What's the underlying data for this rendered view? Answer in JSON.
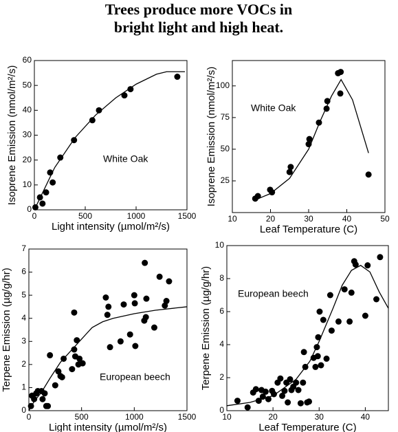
{
  "title": [
    "Trees produce more VOCs in",
    "bright light and high heat."
  ],
  "chart_data": [
    {
      "type": "scatter",
      "xlabel": "Light intensity (µmol/m²/s)",
      "ylabel": "Isoprene Emission (nmol/m²/s)",
      "annotation": "White Oak",
      "xlim": [
        0,
        1500
      ],
      "xticks": [
        0,
        500,
        1000,
        1500
      ],
      "ylim": [
        0,
        60
      ],
      "yticks": [
        0,
        10,
        20,
        30,
        40,
        50,
        60
      ],
      "series": [
        {
          "type": "scatter",
          "color": "#000000",
          "x": [
            10,
            55,
            80,
            115,
            155,
            180,
            255,
            390,
            570,
            635,
            885,
            945,
            1405
          ],
          "values": [
            1,
            5,
            2.5,
            7,
            15,
            11,
            21,
            28,
            36,
            40,
            46,
            48.5,
            53.5
          ]
        },
        {
          "type": "line",
          "color": "#000000",
          "x": [
            0,
            200,
            400,
            600,
            800,
            1000,
            1200,
            1300,
            1480
          ],
          "values": [
            0,
            17,
            29,
            38,
            45,
            50.5,
            54.5,
            55.5,
            55.5
          ]
        }
      ]
    },
    {
      "type": "scatter",
      "xlabel": "Leaf Temperature (C)",
      "ylabel": "Isoprene Emission (nmol/m²/s)",
      "annotation": "White Oak",
      "xlim": [
        10,
        50
      ],
      "xticks": [
        10,
        20,
        30,
        40,
        50
      ],
      "ylim": [
        0,
        120
      ],
      "yticks": [
        25,
        50,
        75,
        100
      ],
      "series": [
        {
          "type": "scatter",
          "color": "#000000",
          "x": [
            16,
            16.7,
            19.9,
            20.4,
            25,
            25.3,
            30,
            30.2,
            32.7,
            34.7,
            34.9,
            37.7,
            38.4,
            38.3,
            45.7
          ],
          "values": [
            11,
            13,
            18,
            16,
            32,
            36,
            54,
            58,
            71,
            82,
            88,
            110,
            111,
            94,
            30
          ]
        },
        {
          "type": "line",
          "color": "#000000",
          "x": [
            16,
            20,
            25,
            30,
            33,
            36,
            38.5,
            41.5,
            45.7
          ],
          "values": [
            10,
            15,
            27,
            50,
            72,
            92,
            105,
            89,
            47
          ]
        }
      ]
    },
    {
      "type": "scatter",
      "xlabel": "Light intensity (µmol/m²/s)",
      "ylabel": "Terpene Emission (µg/g/hr)",
      "annotation": "European beech",
      "xlim": [
        0,
        1500
      ],
      "xticks": [
        0,
        500,
        1000,
        1500
      ],
      "ylim": [
        0,
        7
      ],
      "yticks": [
        0,
        1,
        2,
        3,
        4,
        5,
        6,
        7
      ],
      "series": [
        {
          "type": "scatter",
          "color": "#000000",
          "x": [
            20,
            30,
            50,
            70,
            85,
            120,
            130,
            150,
            165,
            180,
            200,
            250,
            280,
            300,
            315,
            330,
            410,
            430,
            430,
            440,
            455,
            470,
            480,
            510,
            730,
            745,
            755,
            770,
            870,
            900,
            960,
            1000,
            1010,
            1005,
            1095,
            1100,
            1110,
            1115,
            1190,
            1240,
            1290,
            1305,
            1330
          ],
          "values": [
            0.2,
            0.65,
            0.5,
            0.75,
            0.85,
            0.85,
            0.5,
            0.75,
            0.2,
            0.2,
            2.4,
            1.1,
            1.7,
            1.5,
            1.45,
            2.25,
            1.8,
            2.65,
            4.25,
            2.35,
            3.05,
            2.0,
            2.25,
            2.05,
            4.9,
            4.15,
            4.5,
            2.75,
            3.0,
            4.6,
            3.3,
            5.0,
            2.8,
            4.65,
            3.9,
            6.4,
            4.05,
            4.85,
            3.6,
            5.8,
            4.55,
            4.75,
            5.6
          ]
        },
        {
          "type": "line",
          "color": "#000000",
          "x": [
            0,
            50,
            120,
            200,
            300,
            400,
            500,
            600,
            700,
            800,
            1000,
            1200,
            1500
          ],
          "values": [
            0,
            0.4,
            0.8,
            1.4,
            2.1,
            2.6,
            3.1,
            3.6,
            3.85,
            4.0,
            4.2,
            4.35,
            4.5
          ]
        }
      ]
    },
    {
      "type": "scatter",
      "xlabel": "Leaf Temperature (C)",
      "ylabel": "Terpene Emission (µg/g/hr)",
      "annotation": "European beech",
      "xlim": [
        10,
        45
      ],
      "xticks": [
        10,
        20,
        30,
        40
      ],
      "ylim": [
        0,
        10
      ],
      "yticks": [
        0,
        2,
        4,
        6,
        8,
        10
      ],
      "series": [
        {
          "type": "scatter",
          "color": "#000000",
          "x": [
            12.3,
            14.5,
            15.7,
            16.3,
            16.9,
            17.5,
            17.8,
            18.4,
            19,
            19.8,
            20.2,
            21,
            21.6,
            22,
            22.5,
            22.9,
            23.2,
            23.7,
            24,
            24.4,
            25,
            25.5,
            26,
            26.5,
            26.7,
            27,
            27.4,
            27.8,
            28.8,
            29.2,
            29.5,
            29.7,
            29.8,
            30.1,
            30.4,
            30.9,
            31.6,
            32.4,
            32.7,
            34.2,
            35.5,
            36.6,
            37,
            37.6,
            37.9,
            40,
            40.5,
            42.4,
            43.2
          ],
          "values": [
            0.6,
            0.2,
            1.1,
            1.3,
            0.6,
            1.25,
            0.85,
            1.15,
            0.7,
            1.2,
            1.0,
            1.7,
            1.95,
            0.9,
            1.2,
            1.7,
            0.5,
            1.9,
            1.25,
            1.45,
            1.7,
            1.25,
            0.45,
            1.7,
            3.55,
            2.65,
            0.5,
            0.55,
            3.2,
            2.65,
            3.85,
            3.3,
            4.45,
            6.0,
            2.75,
            5.5,
            3.15,
            7.0,
            4.85,
            5.4,
            7.35,
            5.4,
            7.15,
            9.05,
            8.85,
            5.75,
            8.8,
            6.75,
            9.3
          ]
        },
        {
          "type": "line",
          "color": "#000000",
          "x": [
            10,
            15,
            20,
            25,
            28,
            30,
            33,
            35,
            37,
            39,
            41,
            43,
            45
          ],
          "values": [
            0.3,
            0.5,
            0.9,
            1.9,
            3.0,
            4.2,
            6.2,
            7.6,
            8.5,
            8.8,
            8.4,
            7.2,
            6.2
          ]
        }
      ]
    }
  ]
}
